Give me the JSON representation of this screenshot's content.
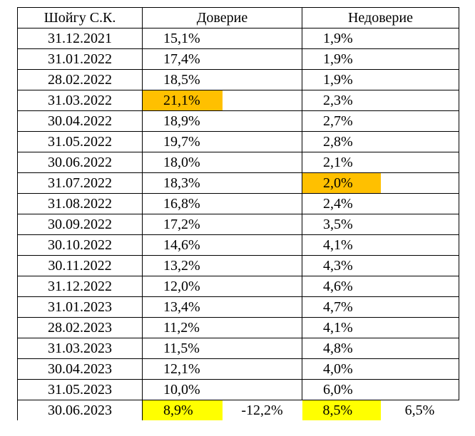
{
  "table": {
    "header": {
      "name": "Шойгу С.К.",
      "trust": "Доверие",
      "distrust": "Недоверие"
    },
    "highlight_colors": {
      "orange": "#FFC000",
      "yellow": "#FFFF00"
    },
    "rows": [
      {
        "date": "31.12.2021",
        "trust": "15,1%",
        "distrust": "1,9%"
      },
      {
        "date": "31.01.2022",
        "trust": "17,4%",
        "distrust": "1,9%"
      },
      {
        "date": "28.02.2022",
        "trust": "18,5%",
        "distrust": "1,9%"
      },
      {
        "date": "31.03.2022",
        "trust": "21,1%",
        "distrust": "2,3%",
        "trust_highlight": "orange"
      },
      {
        "date": "30.04.2022",
        "trust": "18,9%",
        "distrust": "2,7%"
      },
      {
        "date": "31.05.2022",
        "trust": "19,7%",
        "distrust": "2,8%"
      },
      {
        "date": "30.06.2022",
        "trust": "18,0%",
        "distrust": "2,1%"
      },
      {
        "date": "31.07.2022",
        "trust": "18,3%",
        "distrust": "2,0%",
        "distrust_highlight": "orange"
      },
      {
        "date": "31.08.2022",
        "trust": "16,8%",
        "distrust": "2,4%"
      },
      {
        "date": "30.09.2022",
        "trust": "17,2%",
        "distrust": "3,5%"
      },
      {
        "date": "30.10.2022",
        "trust": "14,6%",
        "distrust": "4,1%"
      },
      {
        "date": "30.11.2022",
        "trust": "13,2%",
        "distrust": "4,3%"
      },
      {
        "date": "31.12.2022",
        "trust": "12,0%",
        "distrust": "4,6%"
      },
      {
        "date": "31.01.2023",
        "trust": "13,4%",
        "distrust": "4,7%"
      },
      {
        "date": "28.02.2023",
        "trust": "11,2%",
        "distrust": "4,1%"
      },
      {
        "date": "31.03.2023",
        "trust": "11,5%",
        "distrust": "4,8%"
      },
      {
        "date": "30.04.2023",
        "trust": "12,1%",
        "distrust": "4,0%"
      },
      {
        "date": "31.05.2023",
        "trust": "10,0%",
        "distrust": "6,0%"
      },
      {
        "date": "30.06.2023",
        "trust": "8,9%",
        "trust_change": "-12,2%",
        "distrust": "8,5%",
        "distrust_change": "6,5%",
        "trust_highlight": "yellow",
        "distrust_highlight": "yellow"
      }
    ]
  }
}
